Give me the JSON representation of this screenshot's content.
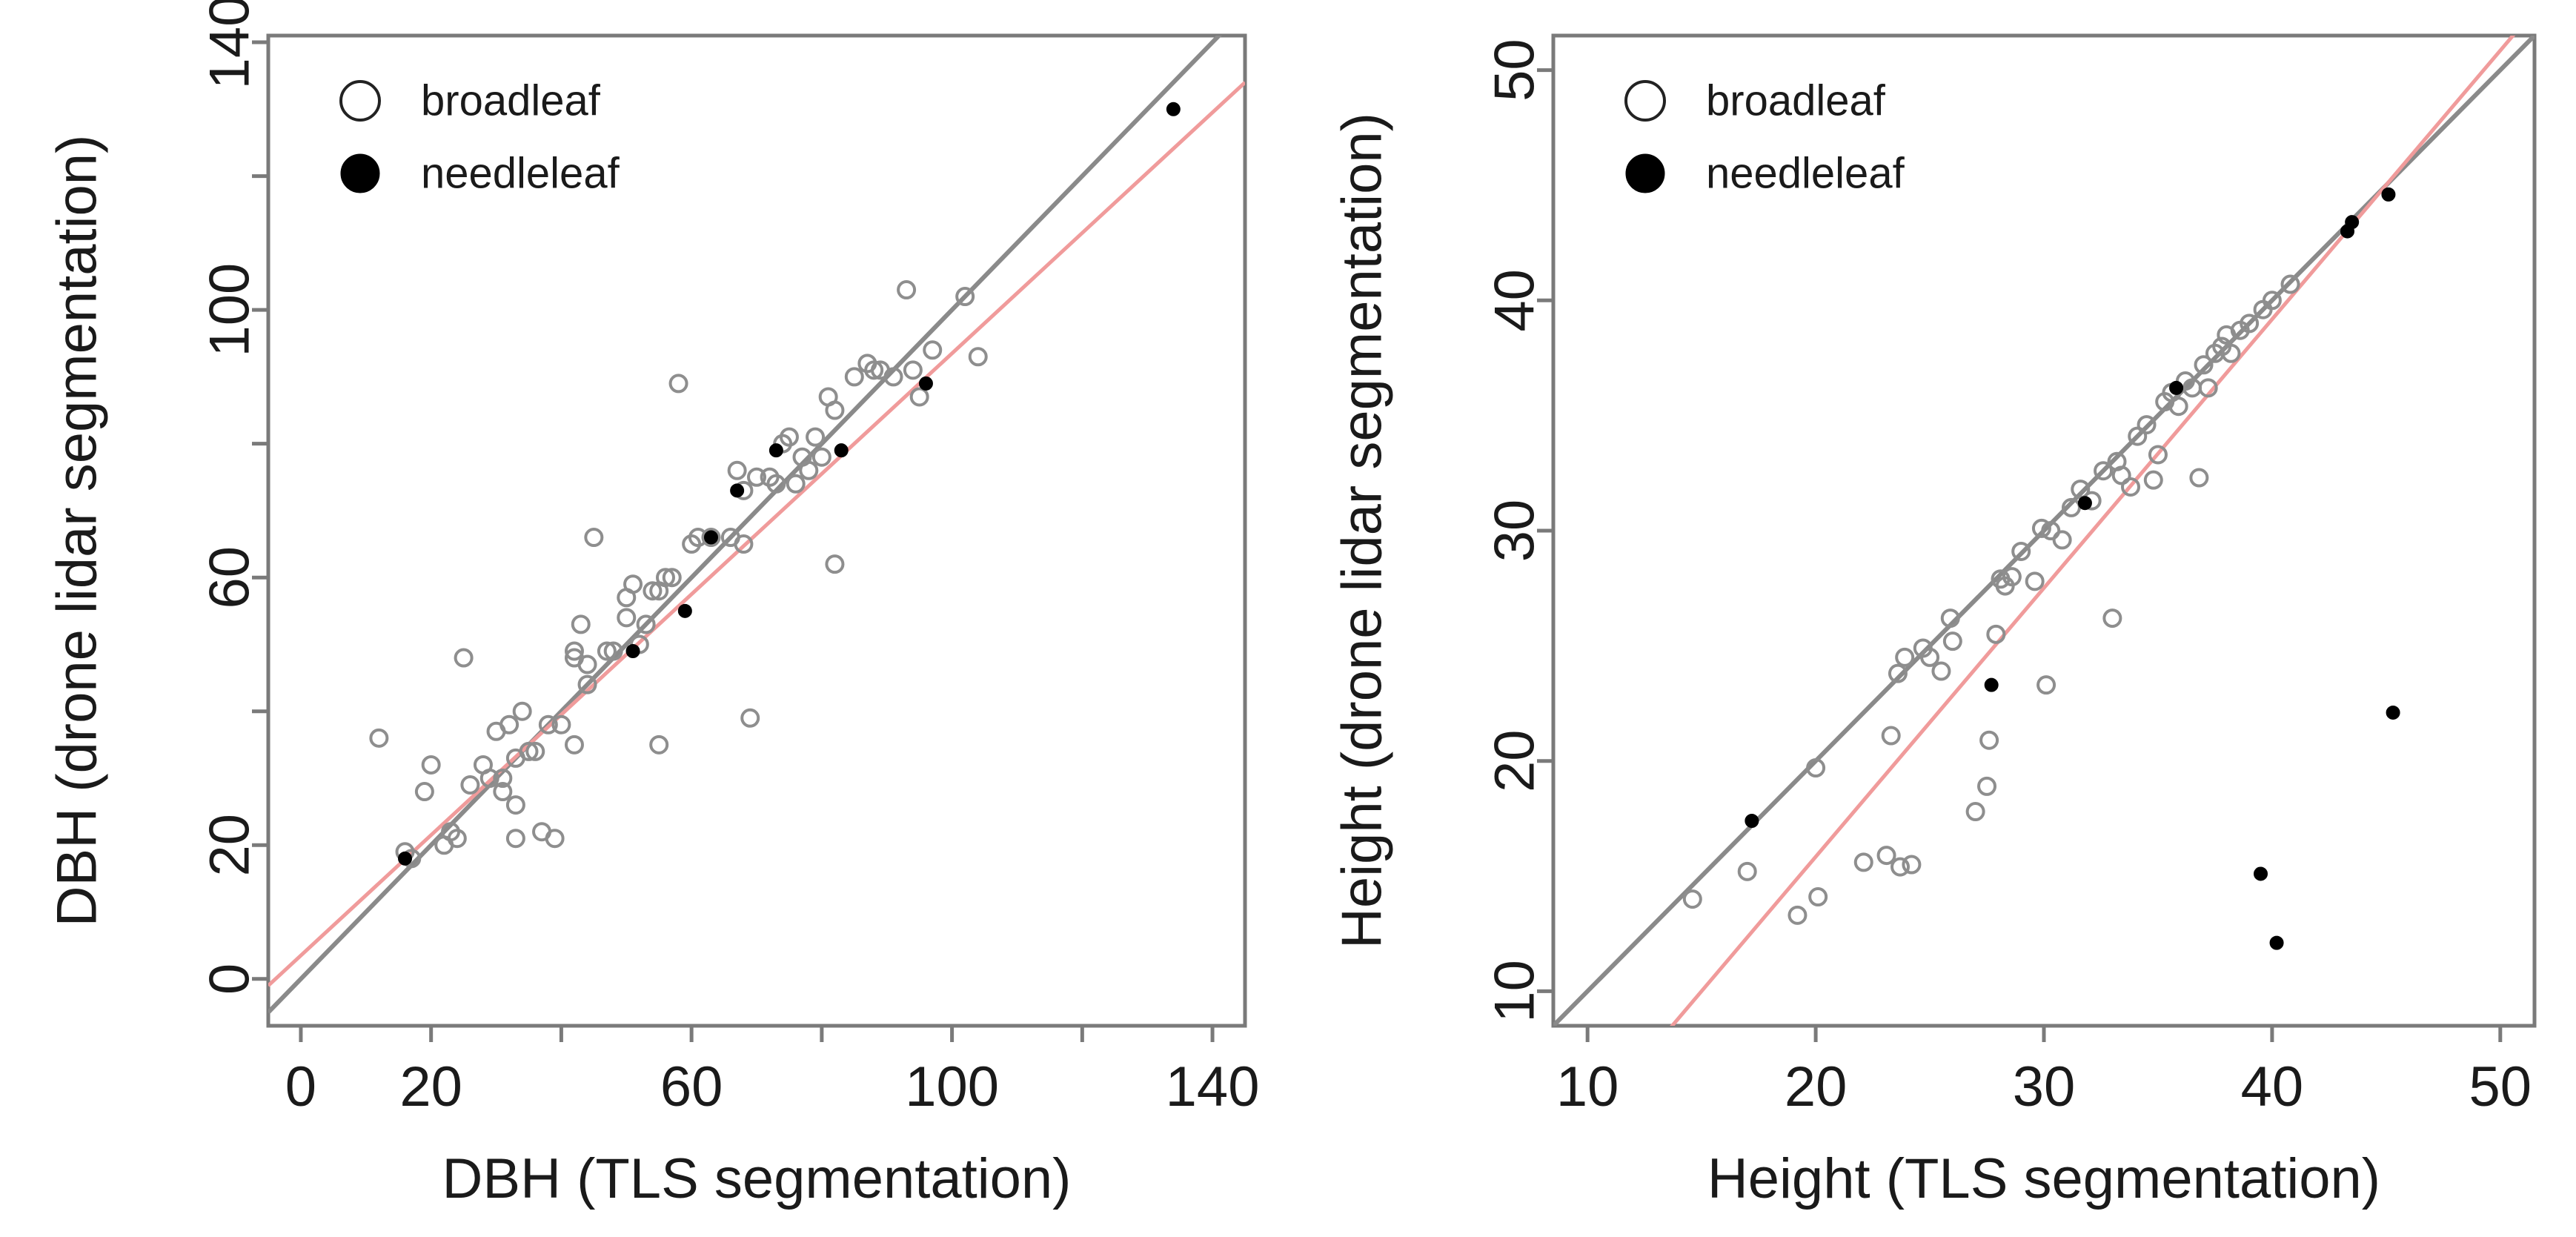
{
  "chart_data": [
    {
      "type": "scatter",
      "xlabel": "DBH (TLS segmentation)",
      "ylabel": "DBH (drone lidar segmentation)",
      "xlim": [
        -5,
        145
      ],
      "ylim": [
        -7,
        141
      ],
      "xticks": [
        0,
        20,
        60,
        100,
        140
      ],
      "xticks_minor": [
        40,
        80,
        120
      ],
      "yticks": [
        0,
        20,
        60,
        100,
        140
      ],
      "yticks_minor": [
        40,
        80,
        120
      ],
      "grid": false,
      "legend": {
        "placement": "top-left",
        "entries": [
          {
            "label": "broadleaf",
            "marker": "open-circle"
          },
          {
            "label": "needleleaf",
            "marker": "filled-circle"
          }
        ]
      },
      "reference_line": {
        "name": "1:1",
        "color": "#8a8a8a",
        "slope": 1,
        "intercept": 0
      },
      "fit_line": {
        "color": "#f09b9b",
        "slope": 0.9,
        "intercept": 3.5
      },
      "series": [
        {
          "name": "broadleaf",
          "points": [
            [
              12,
              36
            ],
            [
              16,
              19
            ],
            [
              17,
              18
            ],
            [
              19,
              28
            ],
            [
              20,
              32
            ],
            [
              22,
              20
            ],
            [
              23,
              22
            ],
            [
              24,
              21
            ],
            [
              25,
              48
            ],
            [
              26,
              29
            ],
            [
              28,
              32
            ],
            [
              29,
              30
            ],
            [
              30,
              37
            ],
            [
              31,
              30
            ],
            [
              31,
              28
            ],
            [
              32,
              38
            ],
            [
              33,
              21
            ],
            [
              33,
              33
            ],
            [
              33,
              26
            ],
            [
              34,
              40
            ],
            [
              35,
              34
            ],
            [
              36,
              34
            ],
            [
              37,
              22
            ],
            [
              38,
              38
            ],
            [
              39,
              21
            ],
            [
              40,
              38
            ],
            [
              42,
              49
            ],
            [
              42,
              48
            ],
            [
              42,
              35
            ],
            [
              43,
              53
            ],
            [
              44,
              47
            ],
            [
              44,
              44
            ],
            [
              45,
              66
            ],
            [
              47,
              49
            ],
            [
              48,
              49
            ],
            [
              50,
              57
            ],
            [
              50,
              54
            ],
            [
              51,
              59
            ],
            [
              52,
              50
            ],
            [
              53,
              53
            ],
            [
              54,
              58
            ],
            [
              55,
              35
            ],
            [
              55,
              58
            ],
            [
              56,
              60
            ],
            [
              57,
              60
            ],
            [
              58,
              89
            ],
            [
              60,
              65
            ],
            [
              61,
              66
            ],
            [
              63,
              66
            ],
            [
              66,
              66
            ],
            [
              67,
              76
            ],
            [
              68,
              73
            ],
            [
              68,
              65
            ],
            [
              69,
              39
            ],
            [
              70,
              75
            ],
            [
              72,
              75
            ],
            [
              73,
              74
            ],
            [
              74,
              80
            ],
            [
              75,
              81
            ],
            [
              76,
              74
            ],
            [
              77,
              78
            ],
            [
              78,
              76
            ],
            [
              79,
              81
            ],
            [
              80,
              78
            ],
            [
              81,
              87
            ],
            [
              82,
              62
            ],
            [
              82,
              85
            ],
            [
              85,
              90
            ],
            [
              87,
              92
            ],
            [
              88,
              91
            ],
            [
              89,
              91
            ],
            [
              91,
              90
            ],
            [
              93,
              103
            ],
            [
              94,
              91
            ],
            [
              95,
              87
            ],
            [
              97,
              94
            ],
            [
              102,
              102
            ],
            [
              104,
              93
            ]
          ]
        },
        {
          "name": "needleleaf",
          "points": [
            [
              16,
              18
            ],
            [
              51,
              49
            ],
            [
              59,
              55
            ],
            [
              63,
              66
            ],
            [
              67,
              73
            ],
            [
              73,
              79
            ],
            [
              83,
              79
            ],
            [
              96,
              89
            ],
            [
              134,
              130
            ]
          ]
        }
      ]
    },
    {
      "type": "scatter",
      "xlabel": "Height (TLS segmentation)",
      "ylabel": "Height (drone lidar segmentation)",
      "xlim": [
        8.5,
        51.5
      ],
      "ylim": [
        8.5,
        51.5
      ],
      "xticks": [
        10,
        20,
        30,
        40,
        50
      ],
      "xticks_minor": [],
      "yticks": [
        10,
        20,
        30,
        40,
        50
      ],
      "yticks_minor": [],
      "grid": false,
      "legend": {
        "placement": "top-left",
        "entries": [
          {
            "label": "broadleaf",
            "marker": "open-circle"
          },
          {
            "label": "needleleaf",
            "marker": "filled-circle"
          }
        ]
      },
      "reference_line": {
        "name": "1:1",
        "color": "#8a8a8a",
        "slope": 1,
        "intercept": 0
      },
      "fit_line": {
        "color": "#f09b9b",
        "slope": 1.167,
        "intercept": -7.5
      },
      "series": [
        {
          "name": "broadleaf",
          "points": [
            [
              14.6,
              14.0
            ],
            [
              17.0,
              15.2
            ],
            [
              19.2,
              13.3
            ],
            [
              20.0,
              19.7
            ],
            [
              20.1,
              14.1
            ],
            [
              22.1,
              15.6
            ],
            [
              23.1,
              15.9
            ],
            [
              23.3,
              21.1
            ],
            [
              23.6,
              23.8
            ],
            [
              23.7,
              15.4
            ],
            [
              23.9,
              24.5
            ],
            [
              24.2,
              15.5
            ],
            [
              24.7,
              24.9
            ],
            [
              25.0,
              24.5
            ],
            [
              25.5,
              23.9
            ],
            [
              25.9,
              26.2
            ],
            [
              26.0,
              25.2
            ],
            [
              27.0,
              17.8
            ],
            [
              27.5,
              18.9
            ],
            [
              27.6,
              20.9
            ],
            [
              27.9,
              25.5
            ],
            [
              28.1,
              27.9
            ],
            [
              28.3,
              27.6
            ],
            [
              28.6,
              28.0
            ],
            [
              29.0,
              29.1
            ],
            [
              29.6,
              27.8
            ],
            [
              29.9,
              30.1
            ],
            [
              30.1,
              23.3
            ],
            [
              30.3,
              30.0
            ],
            [
              30.8,
              29.6
            ],
            [
              31.2,
              31.0
            ],
            [
              31.6,
              31.8
            ],
            [
              32.1,
              31.3
            ],
            [
              32.6,
              32.6
            ],
            [
              33.0,
              26.2
            ],
            [
              33.2,
              33.0
            ],
            [
              33.4,
              32.4
            ],
            [
              33.8,
              31.9
            ],
            [
              34.1,
              34.1
            ],
            [
              34.5,
              34.6
            ],
            [
              34.8,
              32.2
            ],
            [
              35.0,
              33.3
            ],
            [
              35.3,
              35.6
            ],
            [
              35.6,
              36.0
            ],
            [
              35.9,
              35.4
            ],
            [
              36.2,
              36.5
            ],
            [
              36.5,
              36.2
            ],
            [
              36.8,
              32.3
            ],
            [
              37.0,
              37.2
            ],
            [
              37.2,
              36.2
            ],
            [
              37.5,
              37.7
            ],
            [
              37.8,
              38.0
            ],
            [
              38.0,
              38.5
            ],
            [
              38.2,
              37.7
            ],
            [
              38.6,
              38.7
            ],
            [
              39.0,
              39.0
            ],
            [
              39.6,
              39.6
            ],
            [
              40.0,
              40.0
            ],
            [
              40.8,
              40.7
            ]
          ]
        },
        {
          "name": "needleleaf",
          "points": [
            [
              17.2,
              17.4
            ],
            [
              27.7,
              23.3
            ],
            [
              31.8,
              31.2
            ],
            [
              35.8,
              36.2
            ],
            [
              39.5,
              15.1
            ],
            [
              40.2,
              12.1
            ],
            [
              43.3,
              43.0
            ],
            [
              43.5,
              43.4
            ],
            [
              45.1,
              44.6
            ],
            [
              45.3,
              22.1
            ]
          ]
        }
      ]
    }
  ]
}
